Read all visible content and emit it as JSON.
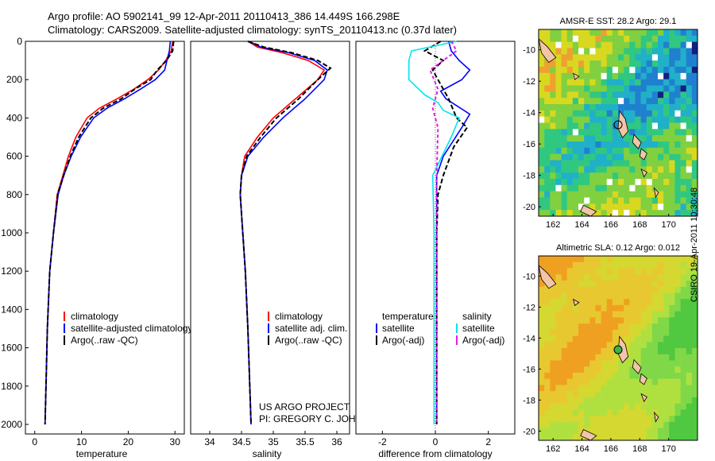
{
  "title": {
    "line1": "Argo profile: AO 5902141_99 12-Apr-2011 20110413_386 14.449S 166.298E",
    "line2": "Climatology: CARS2009. Satellite-adjusted climatology: synTS_20110413.nc (0.37d later)"
  },
  "credit": {
    "project": "US ARGO PROJECT",
    "pi": "PI: GREGORY C. JOHNSON",
    "side": "CSIRO 19-Apr-2011 10:30:48"
  },
  "colors": {
    "climatology": "#ff0000",
    "satellite": "#0000ff",
    "argo": "#000000",
    "cyan": "#00e5ee",
    "magenta": "#e020e0"
  },
  "chart_data": [
    {
      "type": "line",
      "name": "temperature",
      "xlabel": "temperature",
      "ylabel": "",
      "xlim": [
        -2,
        32
      ],
      "ylim": [
        2050,
        0
      ],
      "xticks": [
        0,
        10,
        20,
        30
      ],
      "yticks": [
        0,
        200,
        400,
        600,
        800,
        1000,
        1200,
        1400,
        1600,
        1800,
        2000
      ],
      "legend": [
        "climatology",
        "satellite-adjusted climatology",
        "Argo(..raw -QC)"
      ],
      "series": [
        {
          "name": "climatology",
          "color": "#ff0000",
          "dash": "",
          "x": [
            29.5,
            29.2,
            28.0,
            26.5,
            24.2,
            21.2,
            17.6,
            13.8,
            11.2,
            8.8,
            7.2,
            6.0,
            4.8,
            4.0,
            3.2,
            2.7,
            2.4,
            2.2
          ],
          "y": [
            0,
            50,
            100,
            150,
            200,
            250,
            300,
            350,
            400,
            500,
            600,
            700,
            800,
            1000,
            1200,
            1500,
            1800,
            2000
          ]
        },
        {
          "name": "satellite",
          "color": "#0000ff",
          "dash": "",
          "x": [
            29.0,
            28.8,
            28.3,
            27.8,
            25.8,
            22.6,
            19.2,
            15.4,
            12.6,
            9.8,
            7.8,
            6.2,
            5.0,
            4.0,
            3.2,
            2.7,
            2.4,
            2.2
          ],
          "y": [
            0,
            50,
            100,
            150,
            200,
            250,
            300,
            350,
            400,
            500,
            600,
            700,
            800,
            1000,
            1200,
            1500,
            1800,
            2000
          ]
        },
        {
          "name": "argo",
          "color": "#000000",
          "dash": "6,3",
          "x": [
            29.7,
            29.5,
            28.2,
            26.2,
            24.8,
            21.4,
            18.5,
            14.6,
            12.0,
            9.4,
            7.6,
            6.2,
            4.9,
            4.0,
            3.2,
            2.7,
            2.4,
            2.2
          ],
          "y": [
            0,
            50,
            100,
            150,
            200,
            250,
            300,
            350,
            400,
            500,
            600,
            700,
            800,
            1000,
            1200,
            1500,
            1800,
            2000
          ]
        }
      ]
    },
    {
      "type": "line",
      "name": "salinity",
      "xlabel": "salinity",
      "ylabel": "",
      "xlim": [
        33.7,
        36.2
      ],
      "ylim": [
        2050,
        0
      ],
      "xticks": [
        34,
        34.5,
        35,
        35.5,
        36
      ],
      "yticks": [],
      "legend": [
        "climatology",
        "satellite adj. clim.",
        "Argo(..raw -QC)"
      ],
      "series": [
        {
          "name": "climatology",
          "color": "#ff0000",
          "dash": "",
          "x": [
            34.6,
            34.75,
            35.15,
            35.55,
            35.8,
            35.7,
            35.35,
            35.0,
            34.75,
            34.55,
            34.5,
            34.48,
            34.52,
            34.56,
            34.6,
            34.63,
            34.65
          ],
          "y": [
            0,
            30,
            60,
            100,
            150,
            200,
            300,
            400,
            500,
            600,
            700,
            800,
            1000,
            1200,
            1500,
            1800,
            2000
          ]
        },
        {
          "name": "satellite",
          "color": "#0000ff",
          "dash": "",
          "x": [
            34.62,
            34.8,
            35.25,
            35.65,
            35.85,
            35.8,
            35.5,
            35.15,
            34.85,
            34.6,
            34.5,
            34.48,
            34.52,
            34.56,
            34.6,
            34.63,
            34.65
          ],
          "y": [
            0,
            30,
            60,
            100,
            150,
            200,
            300,
            400,
            500,
            600,
            700,
            800,
            1000,
            1200,
            1500,
            1800,
            2000
          ]
        },
        {
          "name": "argo",
          "color": "#000000",
          "dash": "6,3",
          "x": [
            34.6,
            34.85,
            35.3,
            35.7,
            35.9,
            35.7,
            35.4,
            35.05,
            34.8,
            34.58,
            34.5,
            34.48,
            34.52,
            34.56,
            34.6,
            34.63,
            34.65
          ],
          "y": [
            0,
            30,
            60,
            100,
            140,
            200,
            300,
            400,
            500,
            600,
            700,
            800,
            1000,
            1200,
            1500,
            1800,
            2000
          ]
        }
      ]
    },
    {
      "type": "line",
      "name": "difference",
      "xlabel": "difference from climatology",
      "ylabel": "",
      "xlim": [
        -3,
        3
      ],
      "ylim": [
        2050,
        0
      ],
      "xticks": [
        -2,
        0,
        2
      ],
      "yticks": [],
      "legend_left_title": "temperature",
      "legend_left": [
        "satellite",
        "Argo(-adj)"
      ],
      "legend_right_title": "salinity",
      "legend_right": [
        "satellite",
        "Argo(-adj)"
      ],
      "series": [
        {
          "name": "temperature satellite",
          "color": "#0000ff",
          "dash": "",
          "x": [
            0.5,
            0.6,
            0.9,
            1.3,
            1.0,
            0.2,
            0.4,
            1.3,
            1.0,
            0.3,
            0.05,
            0.05,
            0.05,
            0.05,
            0.05
          ],
          "y": [
            0,
            50,
            100,
            150,
            200,
            260,
            300,
            380,
            450,
            600,
            700,
            800,
            1000,
            1500,
            2000
          ]
        },
        {
          "name": "temperature argo",
          "color": "#000000",
          "dash": "6,3",
          "x": [
            0.2,
            -0.4,
            0.3,
            -0.1,
            0.1,
            0.5,
            0.8,
            1.2,
            0.7,
            0.3,
            0.1,
            0.05,
            0.05,
            0.05
          ],
          "y": [
            0,
            50,
            100,
            150,
            200,
            300,
            400,
            450,
            550,
            700,
            800,
            1000,
            1500,
            2000
          ]
        },
        {
          "name": "salinity satellite",
          "color": "#00e5ee",
          "dash": "",
          "x": [
            0.8,
            -0.9,
            -1.0,
            -1.0,
            -0.4,
            0.1,
            0.3,
            0.9,
            0.6,
            -0.1,
            -0.05,
            -0.05,
            -0.05
          ],
          "y": [
            0,
            50,
            100,
            200,
            280,
            320,
            360,
            400,
            500,
            700,
            1000,
            1500,
            2000
          ]
        },
        {
          "name": "salinity argo",
          "color": "#e020e0",
          "dash": "4,3",
          "x": [
            0.6,
            0.8,
            0.3,
            -0.2,
            0.1,
            -0.1,
            0.1,
            0.05,
            0.05
          ],
          "y": [
            0,
            50,
            100,
            150,
            250,
            350,
            450,
            700,
            2000
          ]
        }
      ]
    },
    {
      "type": "heatmap",
      "name": "sst-map",
      "title": "AMSR-E SST: 28.2  Argo: 29.1",
      "xticks": [
        162,
        164,
        166,
        168,
        170
      ],
      "yticks": [
        -10,
        -12,
        -14,
        -16,
        -18,
        -20
      ],
      "xlim": [
        161,
        172
      ],
      "ylim": [
        -20.6,
        -8.7
      ],
      "float_position": {
        "lon": 166.3,
        "lat": -14.45
      }
    },
    {
      "type": "heatmap",
      "name": "sla-map",
      "title": "Altimetric SLA: 0.12  Argo: 0.012",
      "xticks": [
        162,
        164,
        166,
        168,
        170
      ],
      "yticks": [
        -10,
        -12,
        -14,
        -16,
        -18,
        -20
      ],
      "xlim": [
        161,
        172
      ],
      "ylim": [
        -20.6,
        -8.7
      ],
      "float_position": {
        "lon": 166.3,
        "lat": -14.45
      }
    }
  ]
}
